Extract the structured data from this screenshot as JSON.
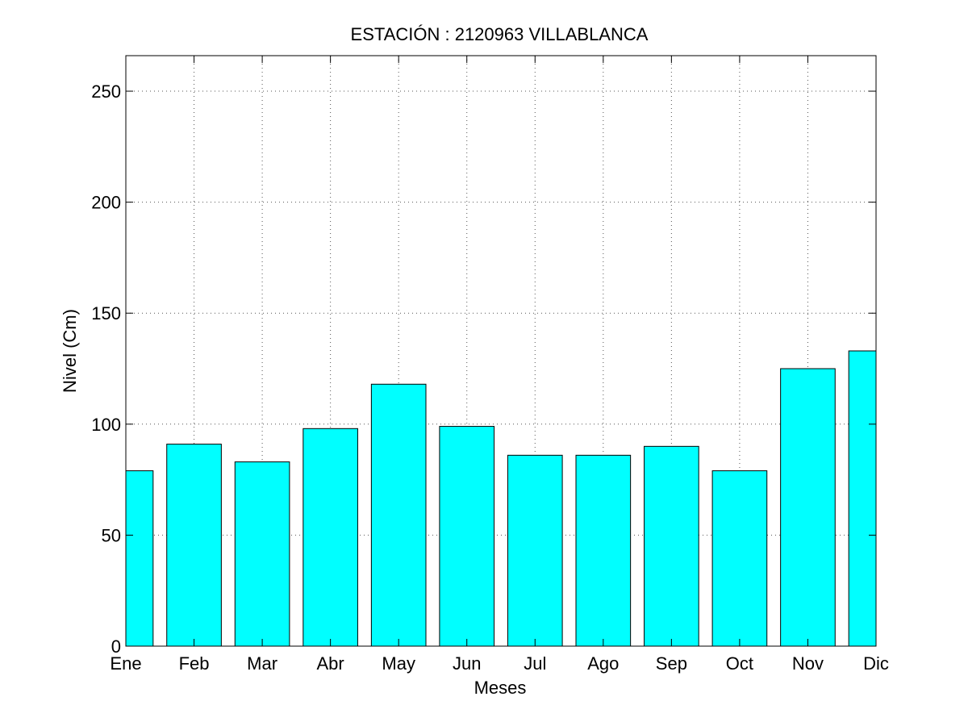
{
  "chart_data": {
    "type": "bar",
    "title": "ESTACIÓN :  2120963  VILLABLANCA",
    "xlabel": "Meses",
    "ylabel": "Nivel (Cm)",
    "categories": [
      "Ene",
      "Feb",
      "Mar",
      "Abr",
      "May",
      "Jun",
      "Jul",
      "Ago",
      "Sep",
      "Oct",
      "Nov",
      "Dic"
    ],
    "values": [
      79,
      91,
      83,
      98,
      118,
      99,
      86,
      86,
      90,
      79,
      125,
      133
    ],
    "ylim": [
      0,
      266
    ],
    "xlim": [
      1,
      12
    ],
    "yticks": [
      0,
      50,
      100,
      150,
      200,
      250
    ],
    "grid": true,
    "bar_color": "#00ffff",
    "edge_color": "#000000"
  }
}
